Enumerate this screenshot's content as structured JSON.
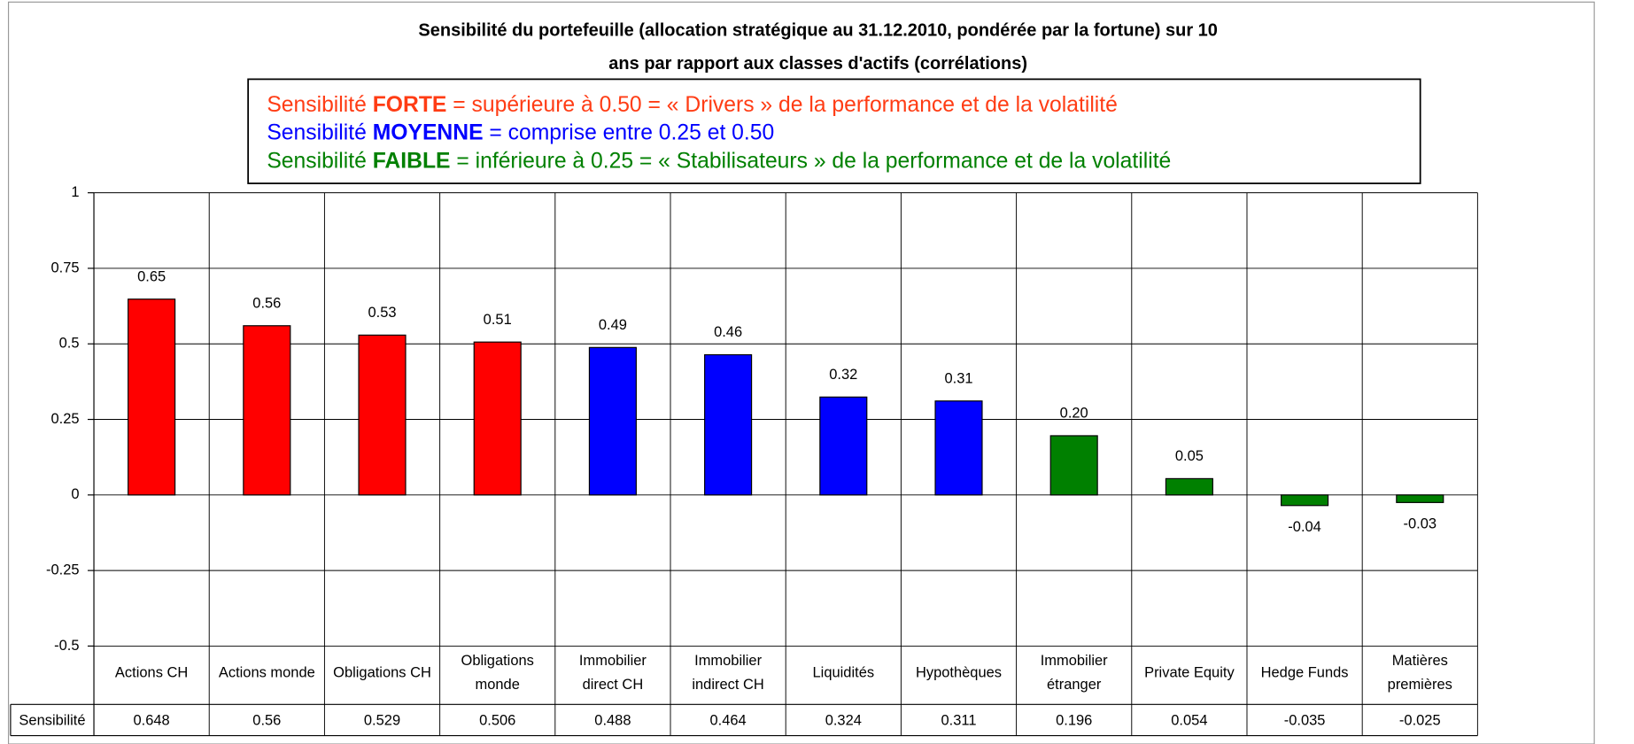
{
  "chart_data": {
    "type": "bar",
    "title": [
      "Sensibilité du portefeuille (allocation stratégique au 31.12.2010, pondérée par la fortune) sur 10",
      "ans par rapport aux classes d'actifs (corrélations)"
    ],
    "legend_box": [
      {
        "prefix": "Sensibilité ",
        "bold": "FORTE",
        "rest": " = supérieure à 0.50 = « Drivers » de la performance et de la volatilité",
        "color": "#ff3c14"
      },
      {
        "prefix": "Sensibilité ",
        "bold": "MOYENNE",
        "rest": " = comprise entre 0.25 et 0.50",
        "color": "#0000ff"
      },
      {
        "prefix": "Sensibilité ",
        "bold": "FAIBLE",
        "rest": " = inférieure à 0.25 = « Stabilisateurs » de la performance et de la volatilité",
        "color": "#008000"
      }
    ],
    "categories": [
      [
        "Actions CH"
      ],
      [
        "Actions monde"
      ],
      [
        "Obligations CH"
      ],
      [
        "Obligations",
        "monde"
      ],
      [
        "Immobilier",
        "direct CH"
      ],
      [
        "Immobilier",
        "indirect CH"
      ],
      [
        "Liquidités"
      ],
      [
        "Hypothèques"
      ],
      [
        "Immobilier",
        "étranger"
      ],
      [
        "Private Equity"
      ],
      [
        "Hedge Funds"
      ],
      [
        "Matières",
        "premières"
      ]
    ],
    "series": [
      {
        "name": "Sensibilité",
        "values": [
          0.648,
          0.56,
          0.529,
          0.506,
          0.488,
          0.464,
          0.324,
          0.311,
          0.196,
          0.054,
          -0.035,
          -0.025
        ],
        "value_labels": [
          "0.65",
          "0.56",
          "0.53",
          "0.51",
          "0.49",
          "0.46",
          "0.32",
          "0.31",
          "0.20",
          "0.05",
          "-0.04",
          "-0.03"
        ],
        "colors": [
          "#ff0000",
          "#ff0000",
          "#ff0000",
          "#ff0000",
          "#0000ff",
          "#0000ff",
          "#0000ff",
          "#0000ff",
          "#008000",
          "#008000",
          "#008000",
          "#008000"
        ]
      }
    ],
    "ylim": [
      -0.5,
      1
    ],
    "yticks": [
      -0.5,
      -0.25,
      0,
      0.25,
      0.5,
      0.75,
      1
    ],
    "grid": true
  }
}
